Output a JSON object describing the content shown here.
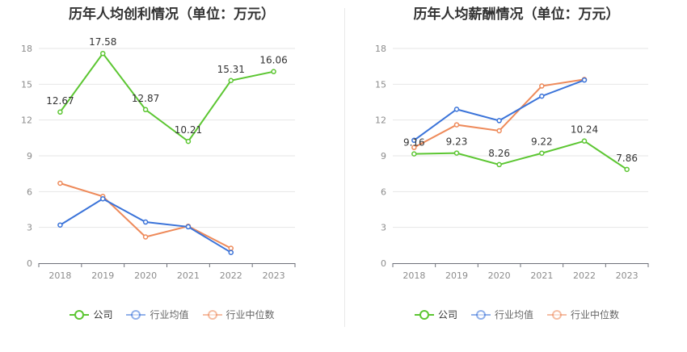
{
  "chart_data": [
    {
      "type": "line",
      "title": "历年人均创利情况（单位：万元）",
      "categories": [
        "2018",
        "2019",
        "2020",
        "2021",
        "2022",
        "2023"
      ],
      "ylim": [
        0,
        18
      ],
      "yticks": [
        "0",
        "3",
        "6",
        "9",
        "12",
        "15",
        "18"
      ],
      "grid": true,
      "legend_position": "bottom-center",
      "series": [
        {
          "name": "公司",
          "color": "#5cc632",
          "values": [
            12.67,
            17.58,
            12.87,
            10.21,
            15.31,
            16.06
          ],
          "labels": [
            "12.67",
            "17.58",
            "12.87",
            "10.21",
            "15.31",
            "16.06"
          ]
        },
        {
          "name": "行业均值",
          "color": "#3a73d9",
          "values": [
            3.2,
            5.4,
            3.45,
            3.05,
            0.9,
            null
          ]
        },
        {
          "name": "行业中位数",
          "color": "#ee8a5a",
          "values": [
            6.7,
            5.6,
            2.2,
            3.1,
            1.25,
            null
          ]
        }
      ]
    },
    {
      "type": "line",
      "title": "历年人均薪酬情况（单位：万元）",
      "categories": [
        "2018",
        "2019",
        "2020",
        "2021",
        "2022",
        "2023"
      ],
      "ylim": [
        0,
        18
      ],
      "yticks": [
        "0",
        "3",
        "6",
        "9",
        "12",
        "15",
        "18"
      ],
      "grid": true,
      "legend_position": "bottom-center",
      "series": [
        {
          "name": "公司",
          "color": "#5cc632",
          "values": [
            9.16,
            9.23,
            8.26,
            9.22,
            10.24,
            7.86
          ],
          "labels": [
            "9.16",
            "9.23",
            "8.26",
            "9.22",
            "10.24",
            "7.86"
          ]
        },
        {
          "name": "行业均值",
          "color": "#3a73d9",
          "values": [
            10.3,
            12.9,
            11.95,
            14.0,
            15.35,
            null
          ]
        },
        {
          "name": "行业中位数",
          "color": "#ee8a5a",
          "values": [
            9.7,
            11.6,
            11.1,
            14.85,
            15.4,
            null
          ]
        }
      ]
    }
  ]
}
